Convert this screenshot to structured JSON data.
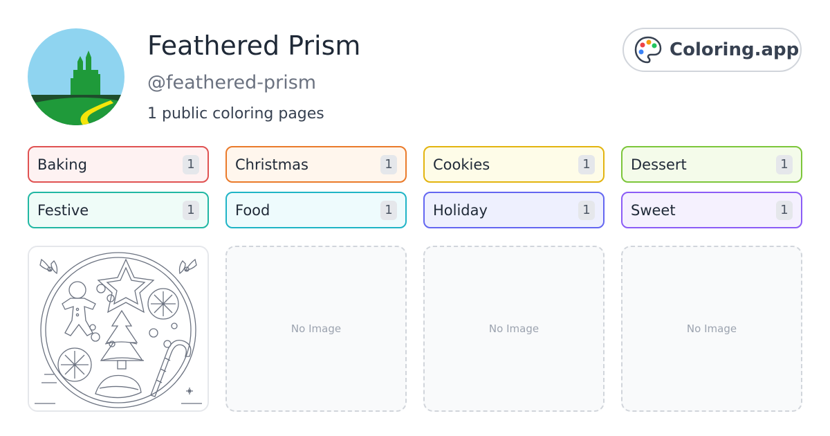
{
  "profile": {
    "name": "Feathered Prism",
    "handle": "@feathered-prism",
    "page_count_text": "1 public coloring pages",
    "avatar_icon": "emerald-city-landscape"
  },
  "brand": {
    "label": "Coloring.app",
    "icon": "palette-icon"
  },
  "tags": [
    {
      "label": "Baking",
      "count": "1",
      "border": "#e05252",
      "bg": "#fef2f2"
    },
    {
      "label": "Christmas",
      "count": "1",
      "border": "#ea7a2a",
      "bg": "#fff6ed"
    },
    {
      "label": "Cookies",
      "count": "1",
      "border": "#e3b40f",
      "bg": "#fefce8"
    },
    {
      "label": "Dessert",
      "count": "1",
      "border": "#7cc63a",
      "bg": "#f4fbea"
    },
    {
      "label": "Festive",
      "count": "1",
      "border": "#21b7a3",
      "bg": "#effcf8"
    },
    {
      "label": "Food",
      "count": "1",
      "border": "#1fb4c6",
      "bg": "#eefbfd"
    },
    {
      "label": "Holiday",
      "count": "1",
      "border": "#6366f1",
      "bg": "#eef0fe"
    },
    {
      "label": "Sweet",
      "count": "1",
      "border": "#8b5cf6",
      "bg": "#f5f1fe"
    }
  ],
  "cards": [
    {
      "type": "image",
      "icon": "christmas-cookies-coloring-page"
    },
    {
      "type": "empty",
      "label": "No Image"
    },
    {
      "type": "empty",
      "label": "No Image"
    },
    {
      "type": "empty",
      "label": "No Image"
    }
  ]
}
